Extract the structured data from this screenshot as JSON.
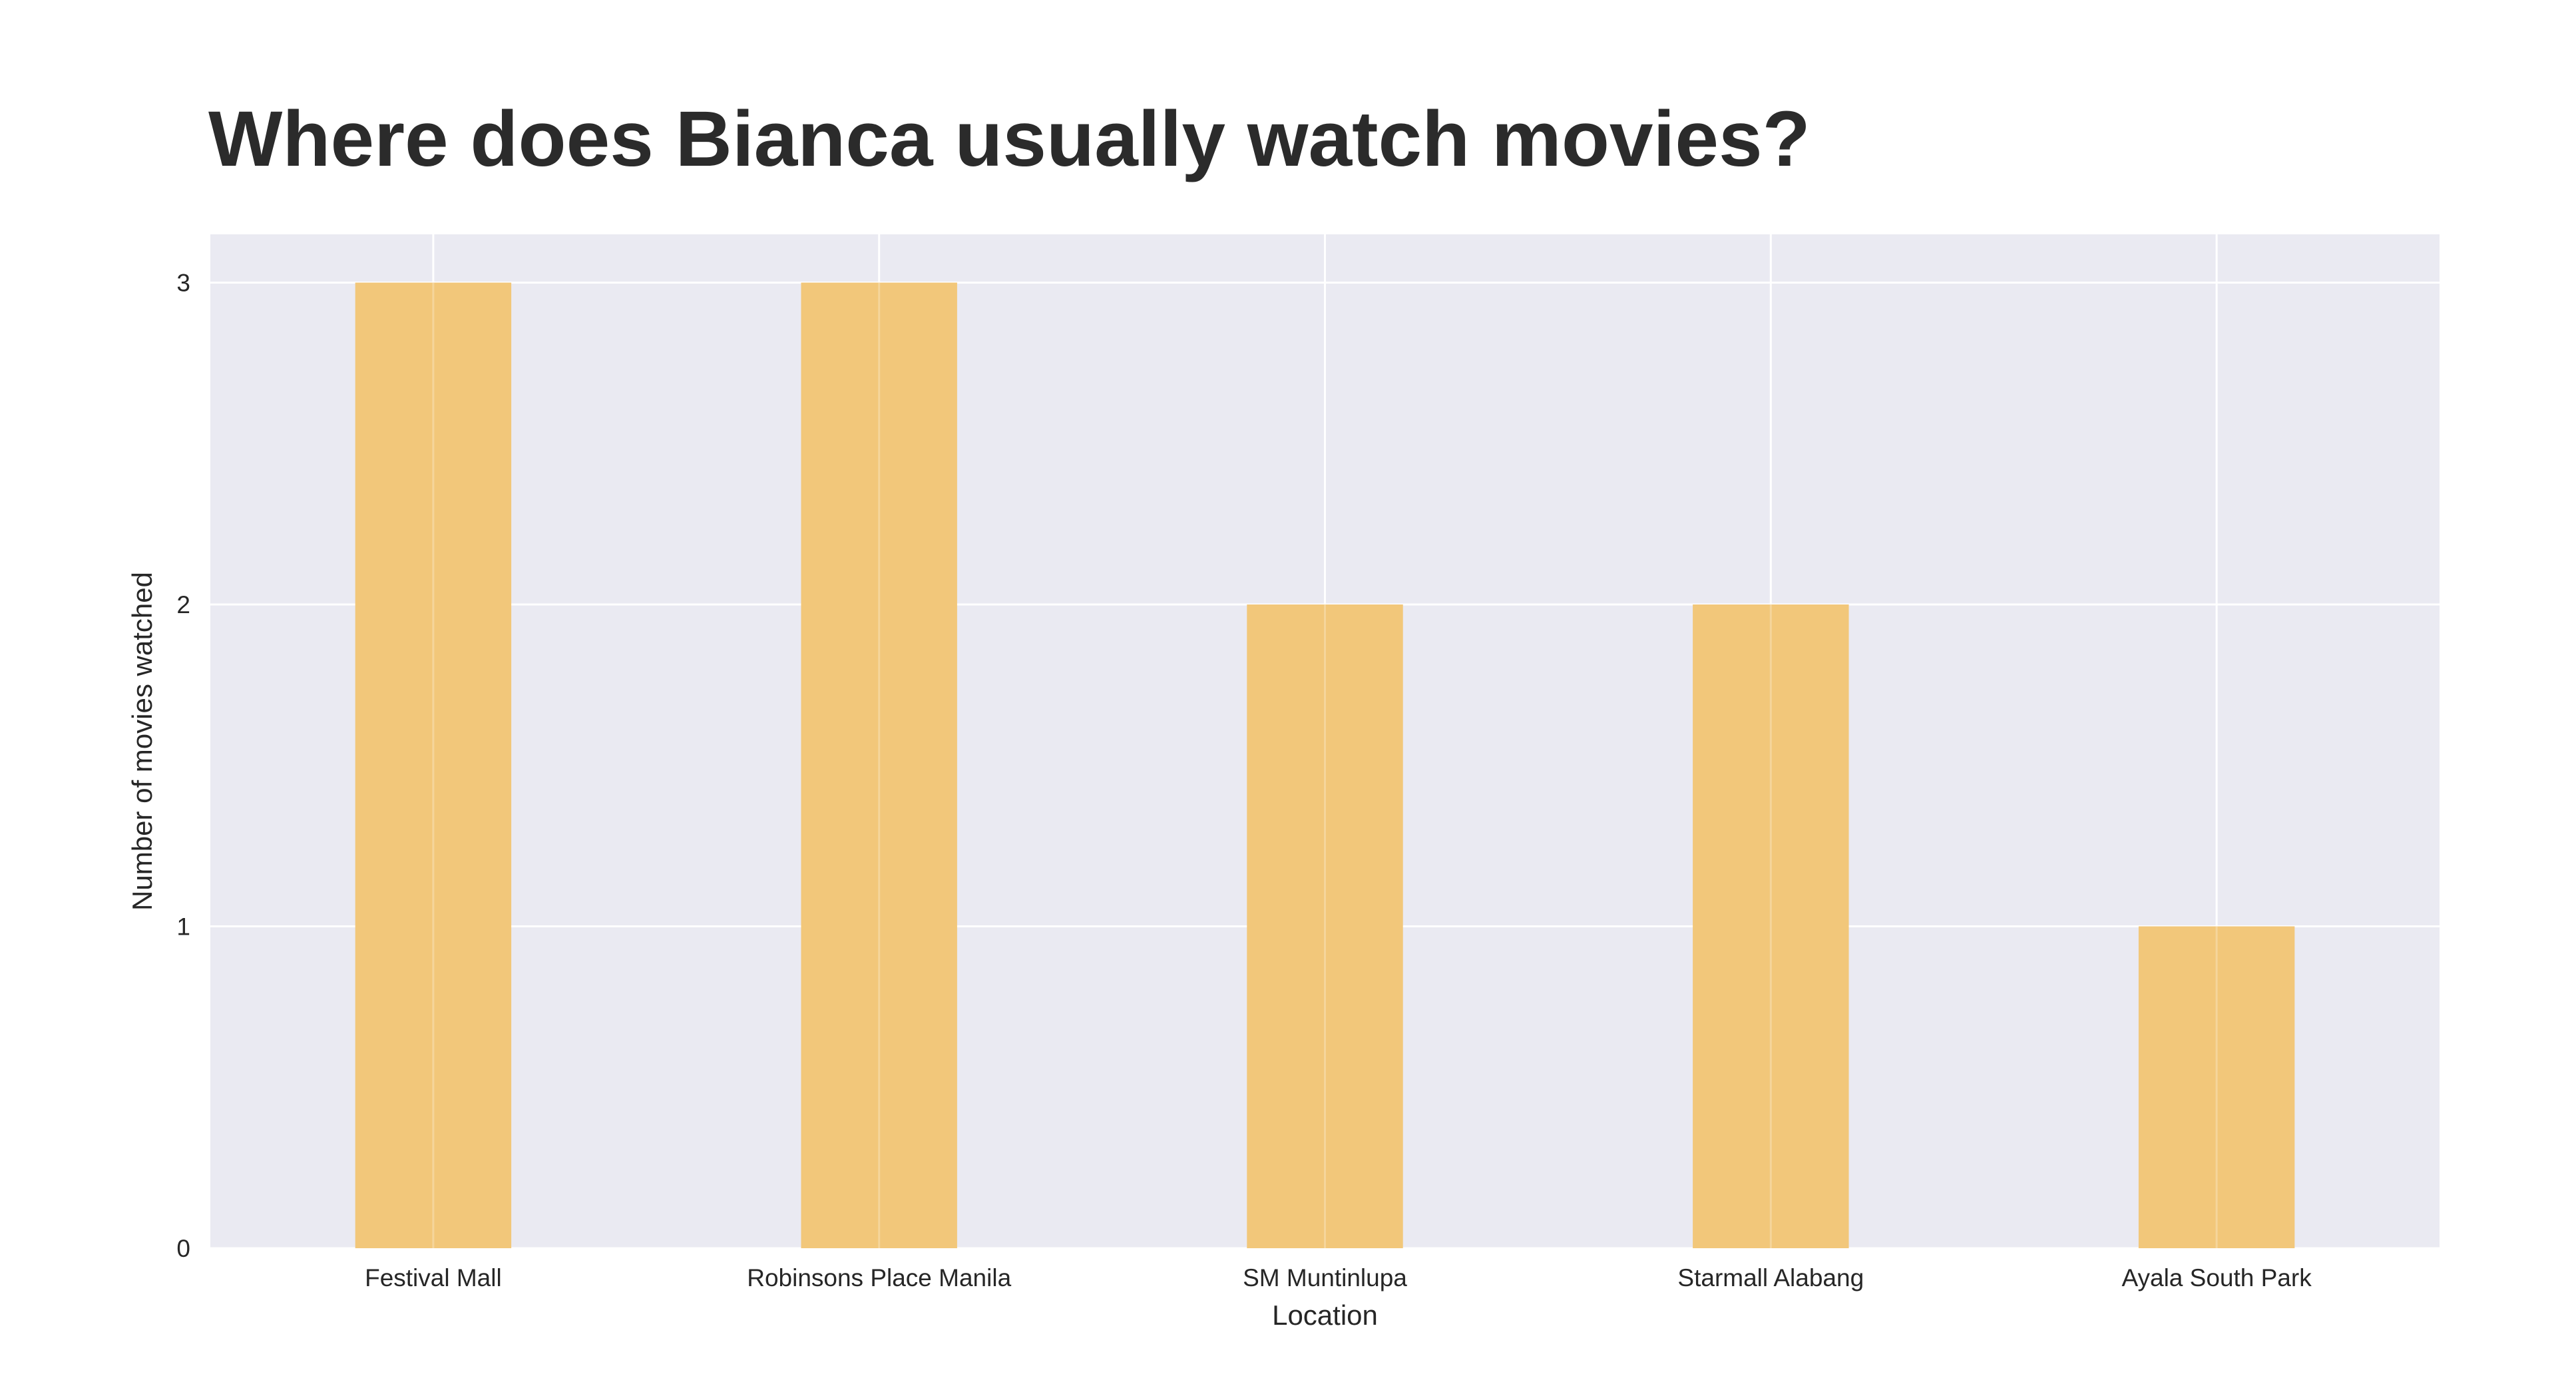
{
  "chart_data": {
    "type": "bar",
    "title": "Where does Bianca usually watch movies?",
    "xlabel": "Location",
    "ylabel": "Number of movies watched",
    "categories": [
      "Festival Mall",
      "Robinsons Place Manila",
      "SM Muntinlupa",
      "Starmall Alabang",
      "Ayala South Park"
    ],
    "values": [
      3,
      3,
      2,
      2,
      1
    ],
    "ylim": [
      0,
      3.15
    ],
    "yticks": [
      "0",
      "1",
      "2",
      "3"
    ],
    "grid": true,
    "legend": "none",
    "colors": {
      "bar": "#f2c77a",
      "plot_background": "#eaeaf2",
      "grid": "#ffffff",
      "text": "#262626"
    }
  }
}
